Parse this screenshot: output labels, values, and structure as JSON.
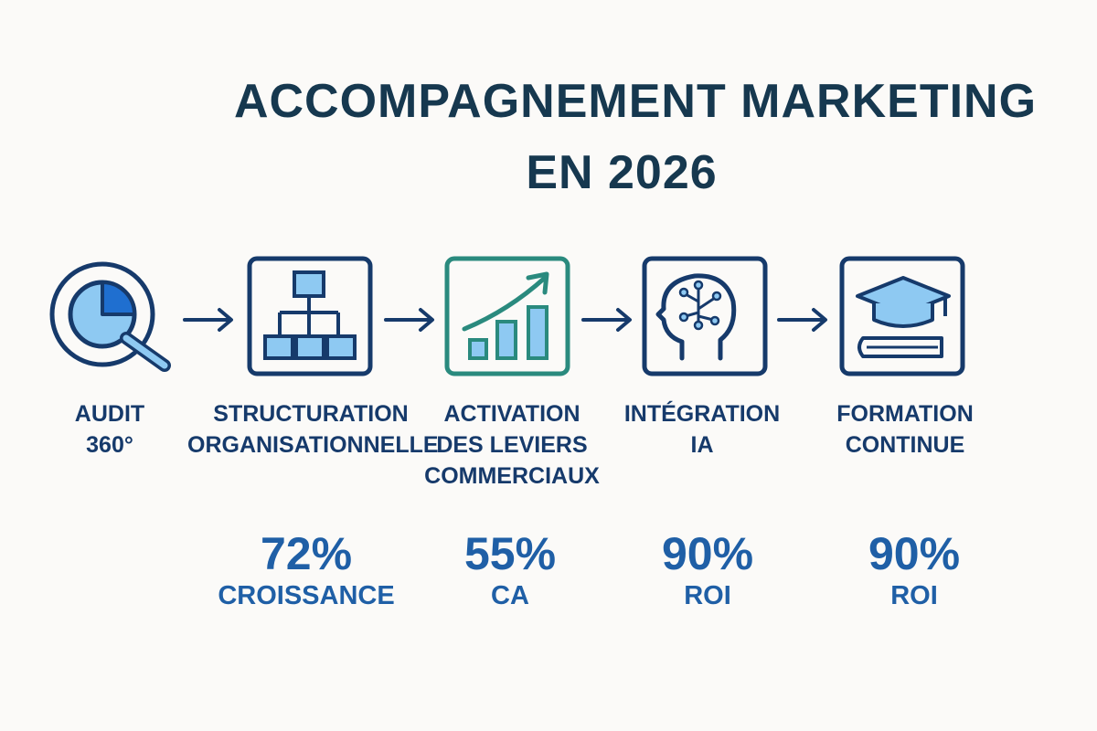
{
  "title": {
    "line1": "ACCOMPAGNEMENT MARKETING",
    "line2": "EN 2026"
  },
  "colors": {
    "navy": "#163a6b",
    "teal": "#2a8a7e",
    "light_blue": "#8ec9f2",
    "accent": "#1f5fa6"
  },
  "steps": [
    {
      "icon": "magnifier-pie-icon",
      "label_lines": [
        "AUDIT",
        "360°"
      ]
    },
    {
      "icon": "org-chart-icon",
      "label_lines": [
        "STRUCTURATION",
        "ORGANISATIONNELLE"
      ]
    },
    {
      "icon": "growth-chart-icon",
      "label_lines": [
        "ACTIVATION",
        "DES LEVIERS",
        "COMMERCIAUX"
      ]
    },
    {
      "icon": "ai-brain-icon",
      "label_lines": [
        "INTÉGRATION",
        "IA"
      ]
    },
    {
      "icon": "graduation-cap-icon",
      "label_lines": [
        "FORMATION",
        "CONTINUE"
      ]
    }
  ],
  "stats": [
    {
      "value": "72%",
      "caption": "CROISSANCE"
    },
    {
      "value": "55%",
      "caption": "CA"
    },
    {
      "value": "90%",
      "caption": "ROI"
    },
    {
      "value": "90%",
      "caption": "ROI"
    }
  ]
}
